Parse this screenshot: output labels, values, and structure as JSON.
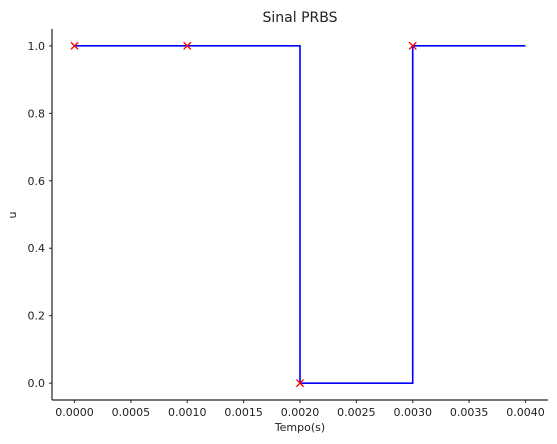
{
  "chart_data": {
    "type": "line",
    "title": "Sinal PRBS",
    "xlabel": "Tempo(s)",
    "ylabel": "u",
    "xlim": [
      -0.0002,
      0.0042
    ],
    "ylim": [
      -0.05,
      1.05
    ],
    "xticks": [
      0.0,
      0.0005,
      0.001,
      0.0015,
      0.002,
      0.0025,
      0.003,
      0.0035,
      0.004
    ],
    "xtick_labels": [
      "0.0000",
      "0.0005",
      "0.0010",
      "0.0015",
      "0.0020",
      "0.0025",
      "0.0030",
      "0.0035",
      "0.0040"
    ],
    "yticks": [
      0.0,
      0.2,
      0.4,
      0.6,
      0.8,
      1.0
    ],
    "ytick_labels": [
      "0.0",
      "0.2",
      "0.4",
      "0.6",
      "0.8",
      "1.0"
    ],
    "grid": false,
    "series": [
      {
        "style": "step",
        "color": "#0000ff",
        "x": [
          0.0,
          0.001,
          0.002,
          0.003,
          0.004
        ],
        "y": [
          1,
          1,
          0,
          1,
          1
        ]
      },
      {
        "style": "markers",
        "marker": "x",
        "color": "#ff0000",
        "x": [
          0.0,
          0.001,
          0.002,
          0.003
        ],
        "y": [
          1,
          1,
          0,
          1
        ]
      }
    ]
  }
}
